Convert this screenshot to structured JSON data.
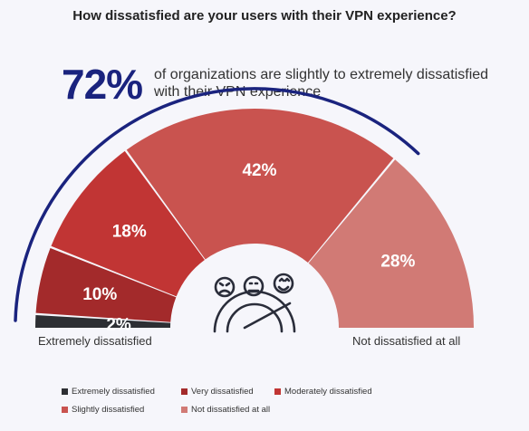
{
  "title": "How dissatisfied are your users with their VPN experience?",
  "headline": {
    "stat": "72%",
    "text": "of organizations are slightly to extremely dissatisfied with their VPN experience"
  },
  "end_labels": {
    "left": "Extremely dissatisfied",
    "right": "Not dissatisfied at all"
  },
  "icon": "satisfaction-gauge-faces-icon",
  "colors": {
    "arc": "#1a237e",
    "background": "#f6f6fb"
  },
  "chart_data": {
    "type": "pie",
    "layout": "semi-donut gauge",
    "categories": [
      "Extremely dissatisfied",
      "Very dissatisfied",
      "Moderately dissatisfied",
      "Slightly dissatisfied",
      "Not dissatisfied at all"
    ],
    "values": [
      2,
      10,
      18,
      42,
      28
    ],
    "labels": [
      "2%",
      "10%",
      "18%",
      "42%",
      "28%"
    ],
    "colors": [
      "#2d2f33",
      "#a32a2b",
      "#c13534",
      "#c9534f",
      "#d17a75"
    ],
    "legend_position": "bottom"
  }
}
